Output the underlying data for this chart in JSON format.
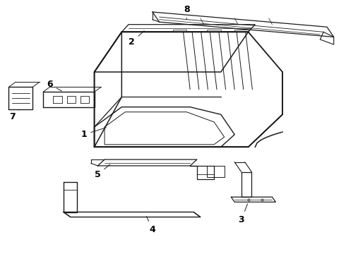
{
  "bg_color": "#ffffff",
  "line_color": "#1a1a1a",
  "label_color": "#000000",
  "label_fontsize": 9,
  "label_fontweight": "bold",
  "figsize": [
    4.9,
    3.6
  ],
  "dpi": 100
}
